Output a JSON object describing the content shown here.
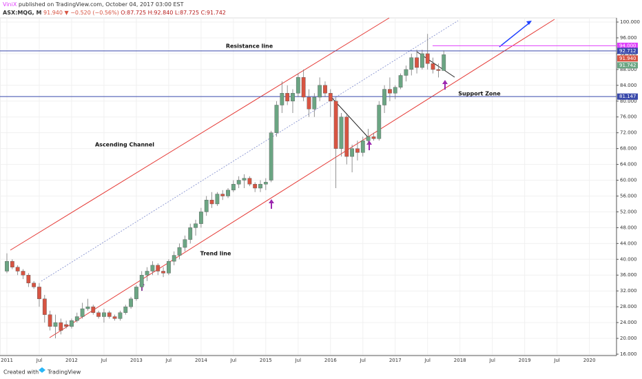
{
  "header": {
    "author": "ViniX",
    "published": "published on TradingView.com, October 04, 2017 03:00 EST",
    "symbol": "ASX:MQG, M",
    "last": "91.940",
    "change": "▼ −0.520 (−0.56%)",
    "ohlc": "O:87.725 H:92.840 L:87.725 C:91.742"
  },
  "footer": {
    "created": "Created with",
    "brand": "TradingView"
  },
  "chart_data": {
    "type": "candlestick",
    "up_color": "#6ba583",
    "down_color": "#d75442",
    "x": [
      "2011-01",
      "2011-02",
      "2011-03",
      "2011-04",
      "2011-05",
      "2011-06",
      "2011-07",
      "2011-08",
      "2011-09",
      "2011-10",
      "2011-11",
      "2011-12",
      "2012-01",
      "2012-02",
      "2012-03",
      "2012-04",
      "2012-05",
      "2012-06",
      "2012-07",
      "2012-08",
      "2012-09",
      "2012-10",
      "2012-11",
      "2012-12",
      "2013-01",
      "2013-02",
      "2013-03",
      "2013-04",
      "2013-05",
      "2013-06",
      "2013-07",
      "2013-08",
      "2013-09",
      "2013-10",
      "2013-11",
      "2013-12",
      "2014-01",
      "2014-02",
      "2014-03",
      "2014-04",
      "2014-05",
      "2014-06",
      "2014-07",
      "2014-08",
      "2014-09",
      "2014-10",
      "2014-11",
      "2014-12",
      "2015-01",
      "2015-02",
      "2015-03",
      "2015-04",
      "2015-05",
      "2015-06",
      "2015-07",
      "2015-08",
      "2015-09",
      "2015-10",
      "2015-11",
      "2015-12",
      "2016-01",
      "2016-02",
      "2016-03",
      "2016-04",
      "2016-05",
      "2016-06",
      "2016-07",
      "2016-08",
      "2016-09",
      "2016-10",
      "2016-11",
      "2016-12",
      "2017-01",
      "2017-02",
      "2017-03",
      "2017-04",
      "2017-05",
      "2017-06",
      "2017-07",
      "2017-08",
      "2017-09",
      "2017-10"
    ],
    "open": [
      37,
      39.5,
      38,
      37,
      36,
      34,
      33,
      30,
      26,
      23,
      24,
      23.5,
      23,
      24.5,
      25.5,
      27.5,
      28,
      26.5,
      25.5,
      26.5,
      25.5,
      25,
      26.5,
      28,
      30,
      33,
      36,
      37,
      38.5,
      37,
      36.5,
      39.5,
      41,
      43,
      45,
      48,
      49,
      52,
      55,
      54,
      56.5,
      56,
      57.5,
      59,
      60,
      60.5,
      59,
      58,
      59,
      60,
      72,
      79,
      82,
      80,
      82,
      86,
      81,
      78,
      81,
      84,
      82,
      80,
      68,
      76,
      66,
      68,
      67,
      70,
      71,
      70.5,
      79,
      83,
      82,
      83.5,
      86.5,
      88,
      91,
      88.5,
      92,
      89.5,
      88,
      87.725
    ],
    "high": [
      41.5,
      40,
      38.5,
      37.5,
      36.5,
      34.5,
      34,
      31,
      27,
      26,
      25,
      24.5,
      25,
      26.5,
      29,
      30,
      28.5,
      27,
      27.5,
      27,
      26,
      27,
      28.5,
      30.5,
      33.5,
      37,
      38,
      39.5,
      39,
      38,
      40,
      42,
      44,
      46,
      49,
      50,
      53,
      56,
      57,
      57,
      57.5,
      58,
      60,
      61,
      61.5,
      61,
      59.5,
      60,
      60.5,
      72.5,
      80,
      85,
      84,
      83,
      87,
      88,
      83,
      82,
      86,
      85,
      83,
      81,
      77,
      77,
      69,
      70,
      71,
      73,
      72,
      80,
      84,
      86,
      84,
      87,
      89,
      92,
      93,
      93,
      97,
      91,
      89.5,
      92.84
    ],
    "low": [
      36.5,
      37.5,
      36,
      35,
      33,
      32.5,
      28,
      24,
      22,
      20,
      21,
      22.5,
      22.5,
      24,
      25,
      27,
      26,
      25,
      24,
      25,
      24.5,
      24.5,
      26,
      27.5,
      29.5,
      32,
      34.5,
      36,
      36,
      35.5,
      36,
      38.5,
      40,
      42,
      44,
      46,
      48,
      51,
      53,
      53.5,
      55,
      55.5,
      57,
      58,
      58,
      58.5,
      57,
      57,
      57.5,
      59.5,
      71,
      77,
      79,
      77,
      81,
      80,
      76,
      76,
      80,
      81,
      76,
      58,
      66,
      64,
      62,
      65,
      66,
      69,
      70,
      70,
      77,
      80,
      80.5,
      83,
      85,
      86.5,
      87,
      88,
      88,
      87,
      86,
      87.725
    ],
    "close": [
      39.5,
      38,
      37,
      36,
      34,
      33,
      30,
      26,
      23,
      24,
      22,
      23,
      24.5,
      25.5,
      27.5,
      28,
      26.5,
      25.5,
      26.5,
      25.5,
      25,
      26.5,
      28,
      30,
      33,
      36,
      37,
      38.5,
      37,
      36.5,
      39.5,
      41,
      43,
      45,
      48,
      49,
      52,
      55,
      54,
      56.5,
      56,
      57.5,
      59,
      60,
      60.5,
      59,
      58,
      59,
      59.5,
      72,
      79,
      82,
      80,
      82,
      86,
      81,
      78,
      81,
      84,
      82,
      80,
      68,
      76,
      66,
      68,
      67,
      70,
      71,
      70.5,
      79,
      83,
      82,
      83.5,
      86.5,
      88,
      91,
      88.5,
      92,
      89.5,
      88,
      87.725,
      91.742
    ],
    "ylim": [
      16,
      100
    ],
    "yticks": [
      {
        "value": 16,
        "label": "16.000"
      },
      {
        "value": 20,
        "label": "20.000"
      },
      {
        "value": 24,
        "label": "24.000"
      },
      {
        "value": 28,
        "label": "28.000"
      },
      {
        "value": 32,
        "label": "32.000"
      },
      {
        "value": 36,
        "label": "36.000"
      },
      {
        "value": 40,
        "label": "40.000"
      },
      {
        "value": 44,
        "label": "44.000"
      },
      {
        "value": 48,
        "label": "48.000"
      },
      {
        "value": 52,
        "label": "52.000"
      },
      {
        "value": 56,
        "label": "56.000"
      },
      {
        "value": 60,
        "label": "60.000"
      },
      {
        "value": 64,
        "label": "64.000"
      },
      {
        "value": 68,
        "label": "68.000"
      },
      {
        "value": 72,
        "label": "72.000"
      },
      {
        "value": 76,
        "label": "76.000"
      },
      {
        "value": 80,
        "label": "80.000"
      },
      {
        "value": 84,
        "label": "84.000"
      },
      {
        "value": 88,
        "label": "88.000"
      },
      {
        "value": 92,
        "label": "92.000"
      },
      {
        "value": 96,
        "label": "96.000"
      },
      {
        "value": 100,
        "label": "100.000"
      }
    ],
    "xticks": [
      {
        "value": "2011-01",
        "label": "2011"
      },
      {
        "value": "2011-07",
        "label": "Jul"
      },
      {
        "value": "2012-01",
        "label": "2012"
      },
      {
        "value": "2012-07",
        "label": "Jul"
      },
      {
        "value": "2013-01",
        "label": "2013"
      },
      {
        "value": "2013-07",
        "label": "Jul"
      },
      {
        "value": "2014-01",
        "label": "2014"
      },
      {
        "value": "2014-07",
        "label": "Jul"
      },
      {
        "value": "2015-01",
        "label": "2015"
      },
      {
        "value": "2015-07",
        "label": "Jul"
      },
      {
        "value": "2016-01",
        "label": "2016"
      },
      {
        "value": "2016-07",
        "label": "Jul"
      },
      {
        "value": "2017-01",
        "label": "2017"
      },
      {
        "value": "2017-07",
        "label": "Jul"
      },
      {
        "value": "2018-01",
        "label": "2018"
      },
      {
        "value": "2018-07",
        "label": "Jul"
      },
      {
        "value": "2019-01",
        "label": "2019"
      },
      {
        "value": "2019-07",
        "label": "Jul"
      },
      {
        "value": "2020-01",
        "label": "2020"
      }
    ],
    "levels": [
      {
        "value": 94,
        "label": "94.000",
        "color": "#e040fb"
      },
      {
        "value": 92.712,
        "label": "92.712",
        "color": "#3949ab"
      },
      {
        "value": 81.147,
        "label": "81.147",
        "color": "#3949ab"
      }
    ],
    "price_labels": [
      {
        "value": 91.94,
        "label": "91.940",
        "color": "#d75442"
      },
      {
        "value": 91.742,
        "label": "91.742",
        "color": "#6ba583"
      }
    ],
    "annotations": [
      "Resistance line",
      "Support Zone",
      "Ascending Channel",
      "Trend line"
    ]
  }
}
